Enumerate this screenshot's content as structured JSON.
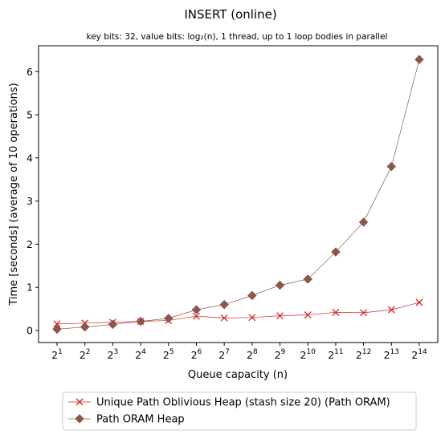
{
  "chart_data": {
    "type": "line",
    "title": "INSERT (online)",
    "subtitle": "key bits: 32, value bits: log₂(n), 1 thread, up to 1 loop bodies in parallel",
    "xlabel": "Queue capacity (n)",
    "ylabel": "Time [seconds] (average of 10 operations)",
    "x_scale": "log2",
    "x_tick_base": "2",
    "x_tick_exponents": [
      "1",
      "2",
      "3",
      "4",
      "5",
      "6",
      "7",
      "8",
      "9",
      "10",
      "11",
      "12",
      "13",
      "14"
    ],
    "x": [
      2,
      4,
      8,
      16,
      32,
      64,
      128,
      256,
      512,
      1024,
      2048,
      4096,
      8192,
      16384
    ],
    "y_ticks": [
      "0",
      "1",
      "2",
      "3",
      "4",
      "5",
      "6"
    ],
    "ylim": [
      -0.28,
      6.6
    ],
    "grid": false,
    "legend_position": "below",
    "series": [
      {
        "name": "Unique Path Oblivious Heap (stash size 20) (Path ORAM)",
        "color": "#d62728",
        "marker": "x",
        "values": [
          0.15,
          0.17,
          0.19,
          0.21,
          0.23,
          0.33,
          0.29,
          0.3,
          0.34,
          0.36,
          0.42,
          0.41,
          0.48,
          0.65
        ]
      },
      {
        "name": "Path ORAM Heap",
        "color": "#8c564b",
        "marker": "diamond",
        "values": [
          0.03,
          0.08,
          0.14,
          0.21,
          0.28,
          0.48,
          0.6,
          0.81,
          1.05,
          1.19,
          1.82,
          2.51,
          3.8,
          6.28
        ]
      }
    ]
  }
}
